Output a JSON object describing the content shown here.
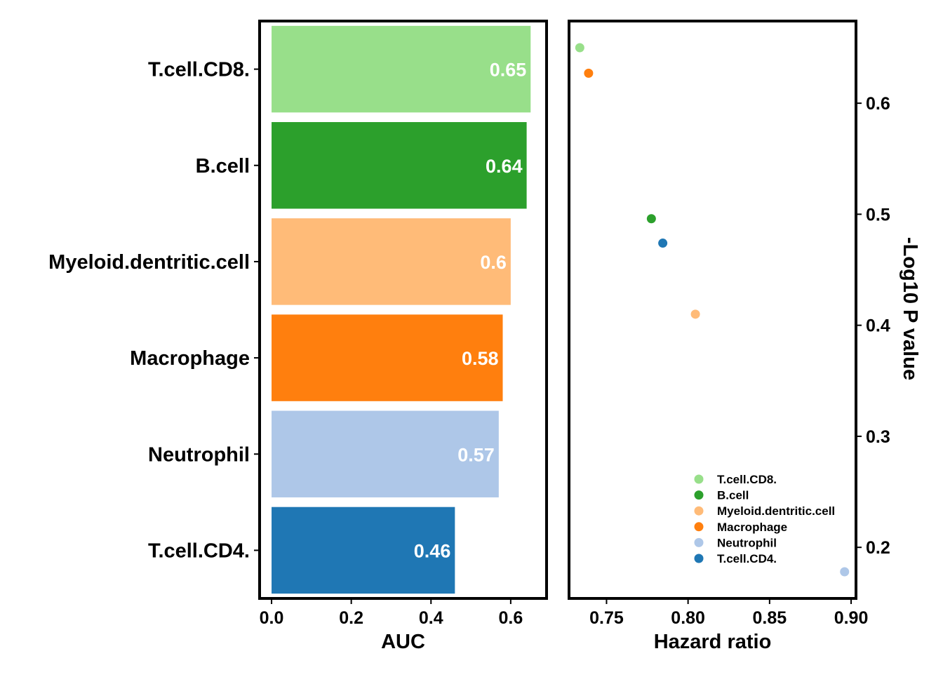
{
  "chart_data": [
    {
      "type": "bar",
      "orientation": "horizontal",
      "categories": [
        "T.cell.CD8.",
        "B.cell",
        "Myeloid.dentritic.cell",
        "Macrophage",
        "Neutrophil",
        "T.cell.CD4."
      ],
      "values": [
        0.65,
        0.64,
        0.6,
        0.58,
        0.57,
        0.46
      ],
      "data_labels": [
        "0.65",
        "0.64",
        "0.6",
        "0.58",
        "0.57",
        "0.46"
      ],
      "colors": [
        "#98df8a",
        "#2ca02c",
        "#ffbb78",
        "#ff7f0e",
        "#aec7e8",
        "#1f77b4"
      ],
      "xlabel": "AUC",
      "xlim": [
        -0.03,
        0.69
      ],
      "xticks": [
        0.0,
        0.2,
        0.4,
        0.6
      ],
      "xtick_labels": [
        "0.0",
        "0.2",
        "0.4",
        "0.6"
      ],
      "grid": false
    },
    {
      "type": "scatter",
      "points": [
        {
          "name": "T.cell.CD8.",
          "x": 0.7336,
          "y": 0.65,
          "color": "#98df8a"
        },
        {
          "name": "B.cell",
          "x": 0.7775,
          "y": 0.496,
          "color": "#2ca02c"
        },
        {
          "name": "Myeloid.dentritic.cell",
          "x": 0.8045,
          "y": 0.41,
          "color": "#ffbb78"
        },
        {
          "name": "Macrophage",
          "x": 0.739,
          "y": 0.627,
          "color": "#ff7f0e"
        },
        {
          "name": "Neutrophil",
          "x": 0.896,
          "y": 0.178,
          "color": "#aec7e8"
        },
        {
          "name": "T.cell.CD4.",
          "x": 0.7845,
          "y": 0.474,
          "color": "#1f77b4"
        }
      ],
      "xlabel": "Hazard ratio",
      "ylabel": "-Log10 P value",
      "xlim": [
        0.727,
        0.903
      ],
      "ylim": [
        0.154,
        0.674
      ],
      "xticks": [
        0.75,
        0.8,
        0.85,
        0.9
      ],
      "xtick_labels": [
        "0.75",
        "0.80",
        "0.85",
        "0.90"
      ],
      "yticks": [
        0.2,
        0.3,
        0.4,
        0.5,
        0.6
      ],
      "ytick_labels": [
        "0.2",
        "0.3",
        "0.4",
        "0.5",
        "0.6"
      ],
      "y_axis_side": "right",
      "legend_position": "bottom-right",
      "legend_entries": [
        "T.cell.CD8.",
        "B.cell",
        "Myeloid.dentritic.cell",
        "Macrophage",
        "Neutrophil",
        "T.cell.CD4."
      ],
      "grid": false
    }
  ]
}
